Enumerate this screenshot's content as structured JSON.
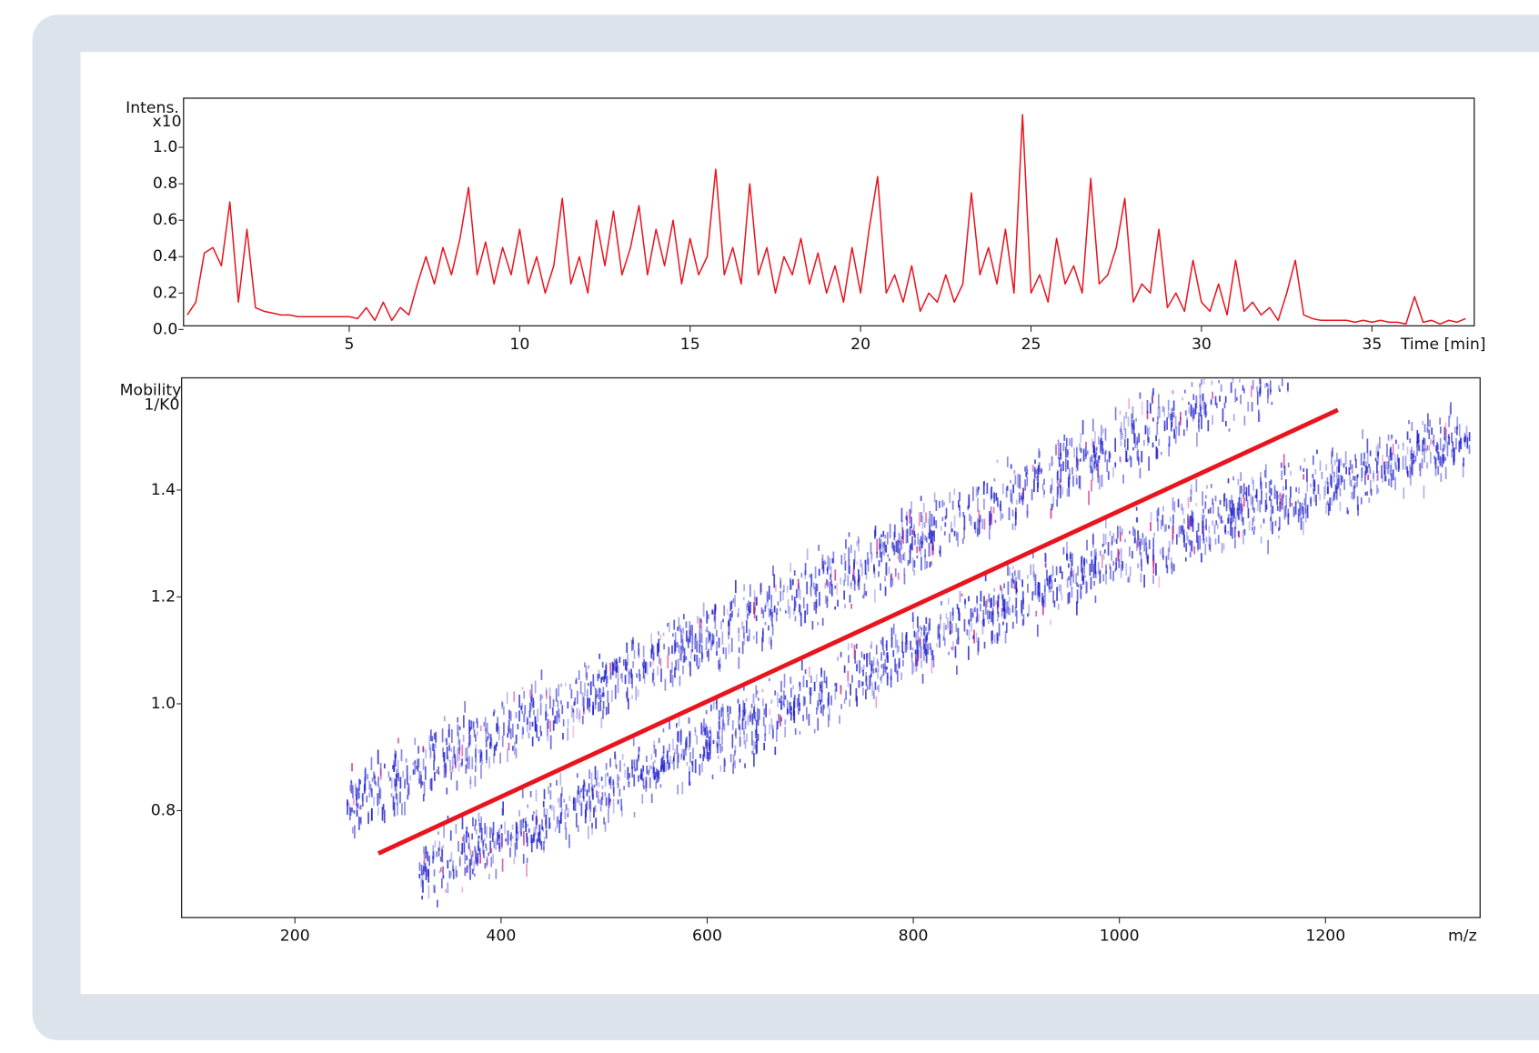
{
  "chart_data": [
    {
      "type": "line",
      "y_label_1": "Intens.",
      "y_label_2": "x10",
      "x_label": "Time [min]",
      "color": "#e8141e",
      "xlim": [
        0.14,
        38
      ],
      "ylim": [
        0.02,
        1.27
      ],
      "xticks": [
        5,
        10,
        15,
        20,
        25,
        30,
        35
      ],
      "yticks": [
        {
          "value": 0,
          "label": "0.0"
        },
        {
          "value": 0.2,
          "label": "0.2"
        },
        {
          "value": 0.4,
          "label": "0.4"
        },
        {
          "value": 0.6,
          "label": "0.6"
        },
        {
          "value": 0.8,
          "label": "0.8"
        },
        {
          "value": 1,
          "label": "1.0"
        }
      ],
      "x": [
        0.25,
        0.5,
        0.75,
        1,
        1.25,
        1.5,
        1.75,
        2,
        2.25,
        2.5,
        2.75,
        3,
        3.25,
        3.5,
        3.75,
        4,
        4.25,
        4.5,
        4.75,
        5,
        5.25,
        5.5,
        5.75,
        6,
        6.25,
        6.5,
        6.75,
        7,
        7.25,
        7.5,
        7.75,
        8,
        8.25,
        8.5,
        8.75,
        9,
        9.25,
        9.5,
        9.75,
        10,
        10.25,
        10.5,
        10.75,
        11,
        11.25,
        11.5,
        11.75,
        12,
        12.25,
        12.5,
        12.75,
        13,
        13.25,
        13.5,
        13.75,
        14,
        14.25,
        14.5,
        14.75,
        15,
        15.25,
        15.5,
        15.75,
        16,
        16.25,
        16.5,
        16.75,
        17,
        17.25,
        17.5,
        17.75,
        18,
        18.25,
        18.5,
        18.75,
        19,
        19.25,
        19.5,
        19.75,
        20,
        20.25,
        20.5,
        20.75,
        21,
        21.25,
        21.5,
        21.75,
        22,
        22.25,
        22.5,
        22.75,
        23,
        23.25,
        23.5,
        23.75,
        24,
        24.25,
        24.5,
        24.75,
        25,
        25.25,
        25.5,
        25.75,
        26,
        26.25,
        26.5,
        26.75,
        27,
        27.25,
        27.5,
        27.75,
        28,
        28.25,
        28.5,
        28.75,
        29,
        29.25,
        29.5,
        29.75,
        30,
        30.25,
        30.5,
        30.75,
        31,
        31.25,
        31.5,
        31.75,
        32,
        32.25,
        32.5,
        32.75,
        33,
        33.25,
        33.5,
        33.75,
        34,
        34.25,
        34.5,
        34.75,
        35,
        35.25,
        35.5,
        35.75,
        36,
        36.25,
        36.5,
        36.75,
        37,
        37.25,
        37.5,
        37.75
      ],
      "values": [
        0.08,
        0.15,
        0.42,
        0.45,
        0.35,
        0.7,
        0.15,
        0.55,
        0.12,
        0.1,
        0.09,
        0.08,
        0.08,
        0.07,
        0.07,
        0.07,
        0.07,
        0.07,
        0.07,
        0.07,
        0.06,
        0.12,
        0.05,
        0.15,
        0.05,
        0.12,
        0.08,
        0.25,
        0.4,
        0.25,
        0.45,
        0.3,
        0.5,
        0.78,
        0.3,
        0.48,
        0.25,
        0.45,
        0.3,
        0.55,
        0.25,
        0.4,
        0.2,
        0.35,
        0.72,
        0.25,
        0.4,
        0.2,
        0.6,
        0.35,
        0.65,
        0.3,
        0.45,
        0.68,
        0.3,
        0.55,
        0.35,
        0.6,
        0.25,
        0.5,
        0.3,
        0.4,
        0.88,
        0.3,
        0.45,
        0.25,
        0.8,
        0.3,
        0.45,
        0.2,
        0.4,
        0.3,
        0.5,
        0.25,
        0.42,
        0.2,
        0.35,
        0.15,
        0.45,
        0.2,
        0.55,
        0.84,
        0.2,
        0.3,
        0.15,
        0.35,
        0.1,
        0.2,
        0.15,
        0.3,
        0.15,
        0.25,
        0.75,
        0.3,
        0.45,
        0.25,
        0.55,
        0.2,
        1.18,
        0.2,
        0.3,
        0.15,
        0.5,
        0.25,
        0.35,
        0.2,
        0.83,
        0.25,
        0.3,
        0.45,
        0.72,
        0.15,
        0.25,
        0.2,
        0.55,
        0.12,
        0.2,
        0.1,
        0.38,
        0.15,
        0.1,
        0.25,
        0.08,
        0.38,
        0.1,
        0.15,
        0.08,
        0.12,
        0.05,
        0.2,
        0.38,
        0.08,
        0.06,
        0.05,
        0.05,
        0.05,
        0.05,
        0.04,
        0.05,
        0.04,
        0.05,
        0.04,
        0.04,
        0.03,
        0.18,
        0.04,
        0.05,
        0.03,
        0.05,
        0.04,
        0.06
      ]
    },
    {
      "type": "line",
      "y_label_1": "Mobility",
      "y_label_2": "1/K0",
      "x_label": "m/z",
      "color": "#e8141e",
      "xlim": [
        90,
        1350
      ],
      "ylim": [
        0.6,
        1.61
      ],
      "xticks": [
        200,
        400,
        600,
        800,
        1000,
        1200
      ],
      "yticks": [
        {
          "value": 0.8,
          "label": "0.8"
        },
        {
          "value": 1,
          "label": "1.0"
        },
        {
          "value": 1.2,
          "label": "1.2"
        },
        {
          "value": 1.4,
          "label": "1.4"
        }
      ],
      "x": [
        281,
        1212
      ],
      "values": [
        0.72,
        1.55
      ]
    }
  ]
}
